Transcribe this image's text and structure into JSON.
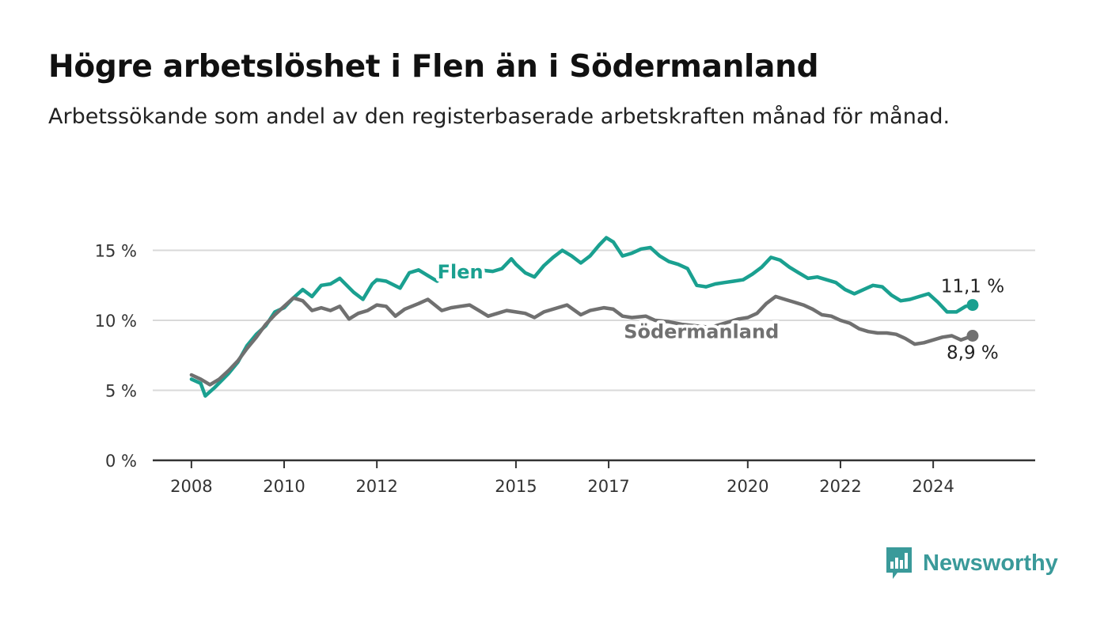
{
  "header": {
    "title": "Högre arbetslöshet i Flen än i Södermanland",
    "subtitle": "Arbetssökande som andel av den registerbaserade arbetskraften månad för månad."
  },
  "chart_data": {
    "type": "line",
    "title": "Högre arbetslöshet i Flen än i Södermanland",
    "subtitle": "Arbetssökande som andel av den registerbaserade arbetskraften månad för månad.",
    "xlabel": "",
    "ylabel": "",
    "ylim": [
      0,
      16.5
    ],
    "xlim": [
      2007.2,
      2026.2
    ],
    "y_ticks": [
      0,
      5,
      10,
      15
    ],
    "y_tick_labels": [
      "0 %",
      "5 %",
      "10 %",
      "15 %"
    ],
    "x_ticks": [
      2008,
      2010,
      2012,
      2015,
      2017,
      2020,
      2022,
      2024
    ],
    "x_tick_labels": [
      "2008",
      "2010",
      "2012",
      "2015",
      "2017",
      "2020",
      "2022",
      "2024"
    ],
    "grid": true,
    "series": [
      {
        "name": "Flen",
        "color": "#1aa090",
        "end_label": "11,1 %",
        "x": [
          2008.0,
          2008.2,
          2008.3,
          2008.5,
          2008.8,
          2009.0,
          2009.2,
          2009.4,
          2009.6,
          2009.8,
          2010.0,
          2010.2,
          2010.4,
          2010.6,
          2010.8,
          2011.0,
          2011.2,
          2011.5,
          2011.7,
          2011.9,
          2012.0,
          2012.2,
          2012.5,
          2012.7,
          2012.9,
          2013.1,
          2013.3,
          2013.5,
          2013.7,
          2013.9,
          2014.2,
          2014.5,
          2014.7,
          2014.9,
          2015.0,
          2015.2,
          2015.4,
          2015.6,
          2015.8,
          2016.0,
          2016.2,
          2016.4,
          2016.6,
          2016.8,
          2016.95,
          2017.1,
          2017.3,
          2017.5,
          2017.7,
          2017.9,
          2018.1,
          2018.3,
          2018.5,
          2018.7,
          2018.9,
          2019.1,
          2019.3,
          2019.5,
          2019.7,
          2019.9,
          2020.1,
          2020.3,
          2020.5,
          2020.7,
          2020.9,
          2021.1,
          2021.3,
          2021.5,
          2021.7,
          2021.9,
          2022.1,
          2022.3,
          2022.5,
          2022.7,
          2022.9,
          2023.1,
          2023.3,
          2023.5,
          2023.7,
          2023.9,
          2024.1,
          2024.3,
          2024.5,
          2024.7,
          2024.85
        ],
        "y": [
          5.8,
          5.5,
          4.6,
          5.2,
          6.2,
          7.0,
          8.2,
          9.0,
          9.6,
          10.6,
          10.9,
          11.6,
          12.2,
          11.7,
          12.5,
          12.6,
          13.0,
          12.0,
          11.5,
          12.6,
          12.9,
          12.8,
          12.3,
          13.4,
          13.6,
          13.2,
          12.8,
          13.4,
          13.5,
          13.4,
          13.6,
          13.5,
          13.7,
          14.4,
          14.0,
          13.4,
          13.1,
          13.9,
          14.5,
          15.0,
          14.6,
          14.1,
          14.6,
          15.4,
          15.9,
          15.6,
          14.6,
          14.8,
          15.1,
          15.2,
          14.6,
          14.2,
          14.0,
          13.7,
          12.5,
          12.4,
          12.6,
          12.7,
          12.8,
          12.9,
          13.3,
          13.8,
          14.5,
          14.3,
          13.8,
          13.4,
          13.0,
          13.1,
          12.9,
          12.7,
          12.2,
          11.9,
          12.2,
          12.5,
          12.4,
          11.8,
          11.4,
          11.5,
          11.7,
          11.9,
          11.3,
          10.6,
          10.6,
          11.0,
          11.1
        ]
      },
      {
        "name": "Södermanland",
        "color": "#707070",
        "end_label": "8,9 %",
        "x": [
          2008.0,
          2008.2,
          2008.4,
          2008.6,
          2008.8,
          2009.0,
          2009.2,
          2009.4,
          2009.6,
          2009.8,
          2010.0,
          2010.2,
          2010.4,
          2010.6,
          2010.8,
          2011.0,
          2011.2,
          2011.4,
          2011.6,
          2011.8,
          2012.0,
          2012.2,
          2012.4,
          2012.6,
          2012.9,
          2013.1,
          2013.4,
          2013.6,
          2013.8,
          2014.0,
          2014.2,
          2014.4,
          2014.6,
          2014.8,
          2015.0,
          2015.2,
          2015.4,
          2015.6,
          2015.9,
          2016.1,
          2016.4,
          2016.6,
          2016.9,
          2017.1,
          2017.3,
          2017.5,
          2017.8,
          2018.0,
          2018.3,
          2018.6,
          2018.9,
          2019.2,
          2019.5,
          2019.8,
          2020.0,
          2020.2,
          2020.4,
          2020.6,
          2020.8,
          2021.0,
          2021.2,
          2021.4,
          2021.6,
          2021.8,
          2022.0,
          2022.2,
          2022.4,
          2022.6,
          2022.8,
          2023.0,
          2023.2,
          2023.4,
          2023.6,
          2023.8,
          2024.0,
          2024.2,
          2024.4,
          2024.6,
          2024.85
        ],
        "y": [
          6.1,
          5.8,
          5.4,
          5.8,
          6.4,
          7.1,
          8.0,
          8.8,
          9.7,
          10.4,
          11.0,
          11.6,
          11.4,
          10.7,
          10.9,
          10.7,
          11.0,
          10.1,
          10.5,
          10.7,
          11.1,
          11.0,
          10.3,
          10.8,
          11.2,
          11.5,
          10.7,
          10.9,
          11.0,
          11.1,
          10.7,
          10.3,
          10.5,
          10.7,
          10.6,
          10.5,
          10.2,
          10.6,
          10.9,
          11.1,
          10.4,
          10.7,
          10.9,
          10.8,
          10.3,
          10.2,
          10.3,
          10.0,
          9.9,
          9.7,
          9.6,
          9.5,
          9.8,
          10.1,
          10.2,
          10.5,
          11.2,
          11.7,
          11.5,
          11.3,
          11.1,
          10.8,
          10.4,
          10.3,
          10.0,
          9.8,
          9.4,
          9.2,
          9.1,
          9.1,
          9.0,
          8.7,
          8.3,
          8.4,
          8.6,
          8.8,
          8.9,
          8.6,
          8.9
        ]
      }
    ]
  },
  "brand": {
    "name": "Newsworthy",
    "color": "#3a9a9a"
  }
}
